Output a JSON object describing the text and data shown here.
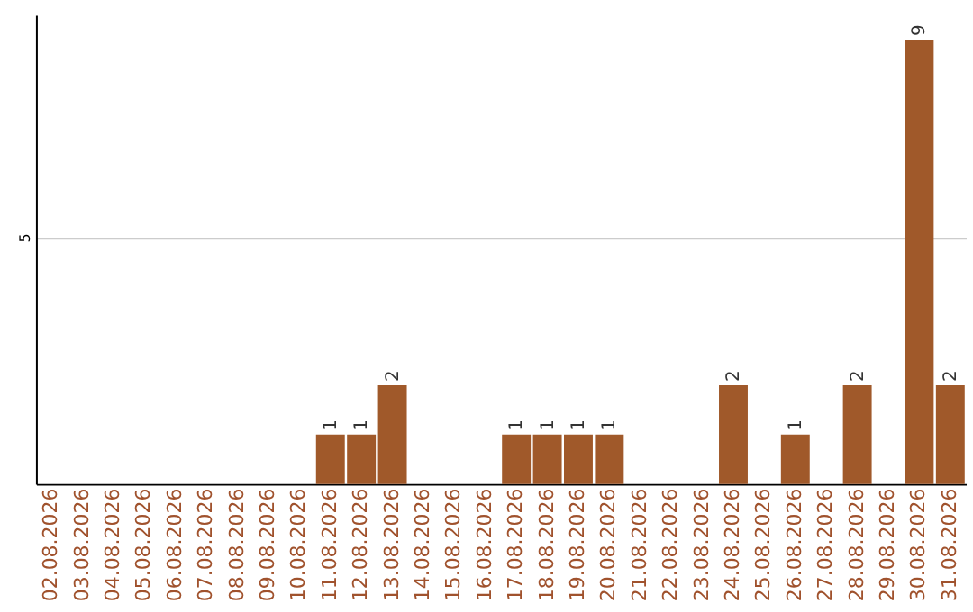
{
  "chart_data": {
    "type": "bar",
    "categories": [
      "02.08.2026",
      "03.08.2026",
      "04.08.2026",
      "05.08.2026",
      "06.08.2026",
      "07.08.2026",
      "08.08.2026",
      "09.08.2026",
      "10.08.2026",
      "11.08.2026",
      "12.08.2026",
      "13.08.2026",
      "14.08.2026",
      "15.08.2026",
      "16.08.2026",
      "17.08.2026",
      "18.08.2026",
      "19.08.2026",
      "20.08.2026",
      "21.08.2026",
      "22.08.2026",
      "23.08.2026",
      "24.08.2026",
      "25.08.2026",
      "26.08.2026",
      "27.08.2026",
      "28.08.2026",
      "29.08.2026",
      "30.08.2026",
      "31.08.2026"
    ],
    "values": [
      0,
      0,
      0,
      0,
      0,
      0,
      0,
      0,
      0,
      1,
      1,
      2,
      0,
      0,
      0,
      1,
      1,
      1,
      1,
      0,
      0,
      0,
      2,
      0,
      1,
      0,
      2,
      0,
      9,
      2
    ],
    "value_labels": [
      null,
      null,
      null,
      null,
      null,
      null,
      null,
      null,
      null,
      "1",
      "1",
      "2",
      null,
      null,
      null,
      "1",
      "1",
      "1",
      "1",
      null,
      null,
      null,
      "2",
      null,
      "1",
      null,
      "2",
      null,
      "9",
      "2"
    ],
    "color": "#a0592a",
    "ylim": [
      0,
      9.5
    ],
    "yticks": [
      5
    ],
    "grid": "y"
  }
}
